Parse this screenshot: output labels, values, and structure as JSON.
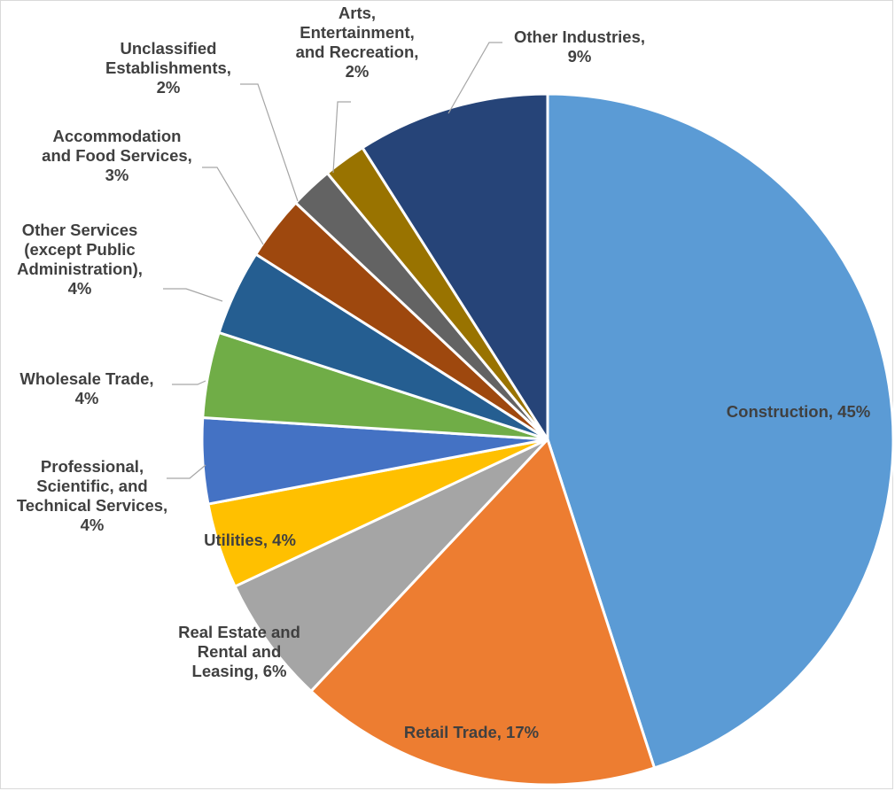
{
  "chart_data": {
    "type": "pie",
    "start_angle_deg": 0,
    "direction": "clockwise",
    "slices": [
      {
        "name": "Construction",
        "value": 45,
        "label": "45%",
        "color": "#5B9BD5",
        "label_lines": [
          "Construction, 45%"
        ]
      },
      {
        "name": "Retail Trade",
        "value": 17,
        "label": "17%",
        "color": "#ED7D31",
        "label_lines": [
          "Retail Trade, 17%"
        ]
      },
      {
        "name": "Real Estate and Rental and Leasing",
        "value": 6,
        "label": "6%",
        "color": "#A5A5A5",
        "label_lines": [
          "Real Estate and",
          "Rental and",
          "Leasing, 6%"
        ]
      },
      {
        "name": "Utilities",
        "value": 4,
        "label": "4%",
        "color": "#FFC000",
        "label_lines": [
          "Utilities, 4%"
        ]
      },
      {
        "name": "Professional, Scientific, and Technical Services",
        "value": 4,
        "label": "4%",
        "color": "#4472C4",
        "label_lines": [
          "Professional,",
          "Scientific, and",
          "Technical Services,",
          "4%"
        ]
      },
      {
        "name": "Wholesale Trade",
        "value": 4,
        "label": "4%",
        "color": "#70AD47",
        "label_lines": [
          "Wholesale Trade,",
          "4%"
        ]
      },
      {
        "name": "Other Services (except Public Administration)",
        "value": 4,
        "label": "4%",
        "color": "#255E91",
        "label_lines": [
          "Other Services",
          "(except Public",
          "Administration),",
          "4%"
        ]
      },
      {
        "name": "Accommodation and Food Services",
        "value": 3,
        "label": "3%",
        "color": "#9E480E",
        "label_lines": [
          "Accommodation",
          "and Food Services,",
          "3%"
        ]
      },
      {
        "name": "Unclassified Establishments",
        "value": 2,
        "label": "2%",
        "color": "#636363",
        "label_lines": [
          "Unclassified",
          "Establishments,",
          "2%"
        ]
      },
      {
        "name": "Arts, Entertainment, and Recreation",
        "value": 2,
        "label": "2%",
        "color": "#997300",
        "label_lines": [
          "Arts,",
          "Entertainment,",
          "and Recreation,",
          "2%"
        ]
      },
      {
        "name": "Other Industries",
        "value": 9,
        "label": "9%",
        "color": "#264478",
        "label_lines": [
          "Other Industries,",
          "9%"
        ]
      }
    ]
  }
}
